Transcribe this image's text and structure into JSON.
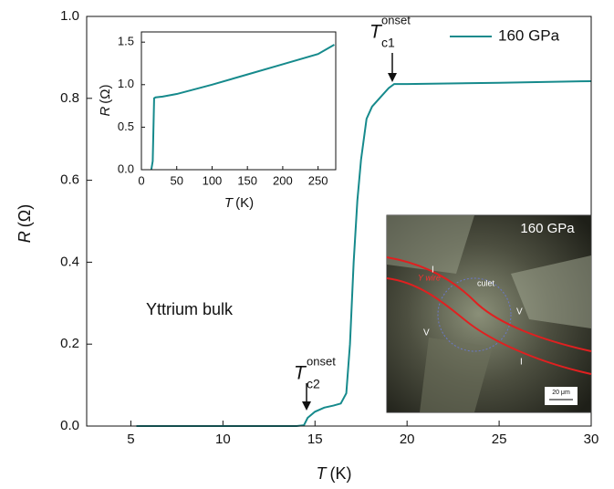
{
  "chart_data": [
    {
      "type": "line",
      "x": [
        5.3,
        8,
        10,
        12,
        14,
        14.4,
        14.6,
        15,
        15.5,
        16,
        16.4,
        16.7,
        16.9,
        17.1,
        17.3,
        17.5,
        17.8,
        18.1,
        18.5,
        19,
        19.3,
        20,
        25,
        30
      ],
      "series": [
        {
          "name": "160 GPa",
          "color": "#168a8c",
          "values": [
            0,
            0,
            0,
            0,
            0,
            0.002,
            0.02,
            0.035,
            0.045,
            0.05,
            0.055,
            0.08,
            0.2,
            0.4,
            0.55,
            0.65,
            0.75,
            0.78,
            0.8,
            0.825,
            0.835,
            0.835,
            0.838,
            0.842
          ]
        }
      ],
      "xlim": [
        2.6,
        30
      ],
      "ylim": [
        0,
        1
      ],
      "xticks": [
        5,
        10,
        15,
        20,
        25,
        30
      ],
      "yticks": [
        {
          "value": 0,
          "label": "0.0"
        },
        {
          "value": 0.2,
          "label": "0.2"
        },
        {
          "value": 0.4,
          "label": "0.4"
        },
        {
          "value": 0.6,
          "label": "0.6"
        },
        {
          "value": 0.8,
          "label": "0.8"
        },
        {
          "value": 1,
          "label": "1.0"
        }
      ],
      "x_label": {
        "variable": "T",
        "unit": "(K)"
      },
      "y_label": {
        "variable": "R",
        "unit": "(Ω)"
      },
      "legend": "upper right",
      "annotations": [
        {
          "text": "Yttrium bulk"
        },
        {
          "symbol": "T",
          "subscript": "c1",
          "superscript": "onset"
        },
        {
          "symbol": "T",
          "subscript": "c2",
          "superscript": "onset"
        }
      ]
    },
    {
      "type": "line",
      "x": [
        14,
        16,
        18,
        20,
        30,
        50,
        100,
        150,
        200,
        250,
        273
      ],
      "values": [
        0,
        0.1,
        0.84,
        0.85,
        0.86,
        0.89,
        1.0,
        1.12,
        1.24,
        1.36,
        1.47
      ],
      "color": "#168a8c",
      "xlim": [
        0,
        275
      ],
      "ylim": [
        0,
        1.62
      ],
      "xticks": [
        0,
        50,
        100,
        150,
        200,
        250
      ],
      "yticks": [
        {
          "value": 0,
          "label": "0.0"
        },
        {
          "value": 0.5,
          "label": "0.5"
        },
        {
          "value": 1,
          "label": "1.0"
        },
        {
          "value": 1.5,
          "label": "1.5"
        }
      ],
      "x_label": {
        "variable": "T",
        "unit": "(K)"
      },
      "y_label": {
        "variable": "R",
        "unit": "(Ω)"
      }
    }
  ],
  "photo": {
    "pressure": "160 GPa",
    "labels": [
      "I",
      "I",
      "V",
      "V",
      "culet",
      "Y wire",
      "20 μm"
    ]
  }
}
